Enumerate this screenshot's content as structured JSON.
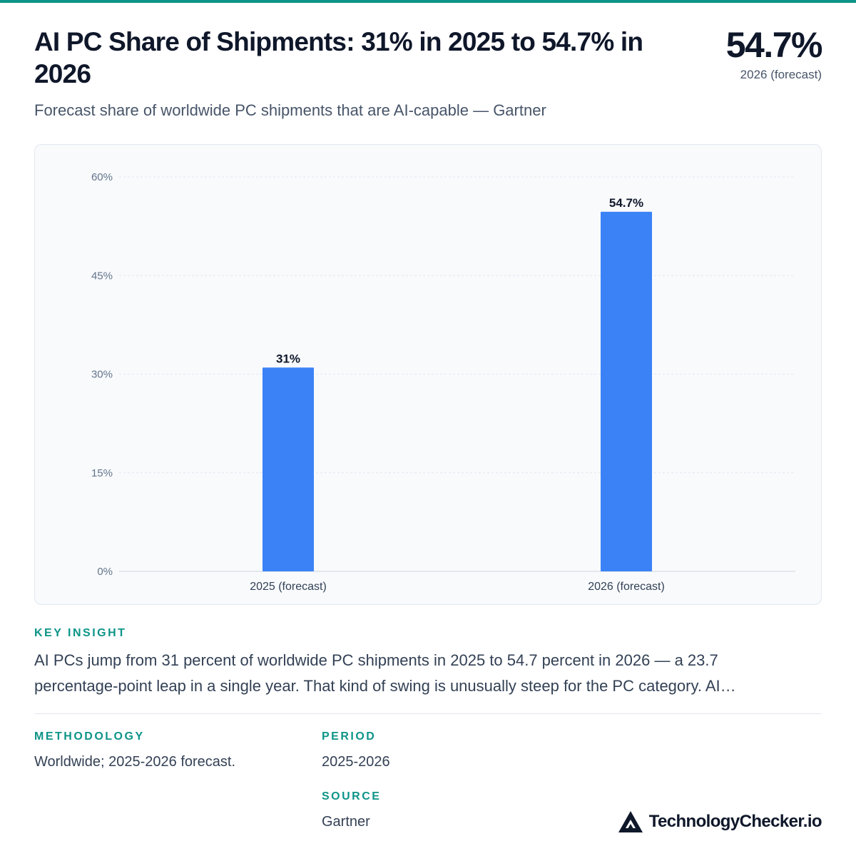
{
  "header": {
    "title": "AI PC Share of Shipments: 31% in 2025 to 54.7% in 2026",
    "subtitle": "Forecast share of worldwide PC shipments that are AI-capable — Gartner",
    "hero_value": "54.7%",
    "hero_label": "2026 (forecast)"
  },
  "chart_data": {
    "type": "bar",
    "categories": [
      "2025 (forecast)",
      "2026 (forecast)"
    ],
    "values": [
      31,
      54.7
    ],
    "value_labels": [
      "31%",
      "54.7%"
    ],
    "yticks": [
      "0%",
      "15%",
      "30%",
      "45%",
      "60%"
    ],
    "ytick_values": [
      0,
      15,
      30,
      45,
      60
    ],
    "ylim": [
      0,
      60
    ],
    "grid": true,
    "bar_color": "#3b82f6"
  },
  "insight": {
    "label": "KEY INSIGHT",
    "line1": "AI PCs jump from 31 percent of worldwide PC shipments in 2025 to 54.7 percent in 2026 — a 23.7",
    "line2": "percentage-point leap in a single year. That kind of swing is unusually steep for the PC category. AI…"
  },
  "methodology": {
    "label": "METHODOLOGY",
    "value": "Worldwide; 2025-2026 forecast."
  },
  "period": {
    "label": "PERIOD",
    "value": "2025-2026"
  },
  "source": {
    "label": "SOURCE",
    "value": "Gartner"
  },
  "brand": {
    "name": "TechnologyChecker.io",
    "icon": "triangle-logo-icon"
  },
  "colors": {
    "accent": "#0d9488",
    "bar": "#3b82f6",
    "text": "#0f172a",
    "muted": "#475569"
  }
}
